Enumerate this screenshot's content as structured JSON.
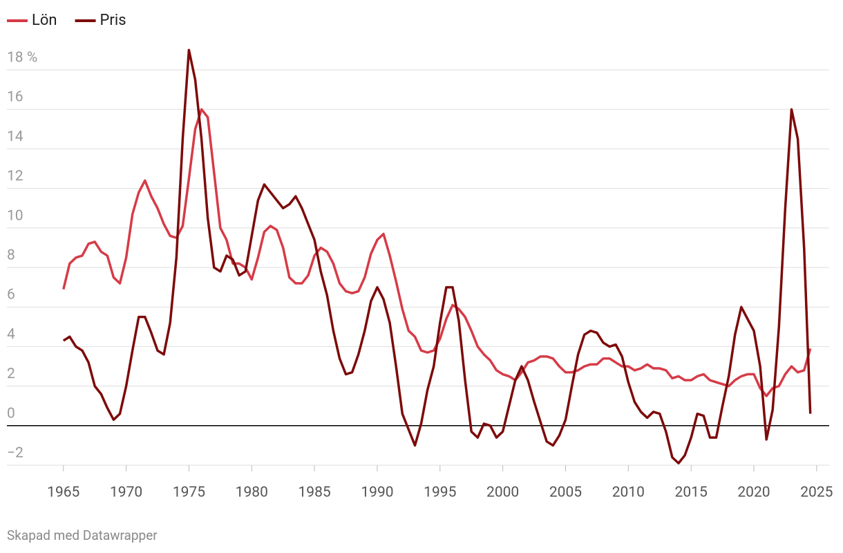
{
  "chart_data": {
    "type": "line",
    "footer": "Skapad med Datawrapper",
    "x": [
      1965,
      1965.5,
      1966,
      1966.5,
      1967,
      1967.5,
      1968,
      1968.5,
      1969,
      1969.5,
      1970,
      1970.5,
      1971,
      1971.5,
      1972,
      1972.5,
      1973,
      1973.5,
      1974,
      1974.5,
      1975,
      1975.5,
      1976,
      1976.5,
      1977,
      1977.5,
      1978,
      1978.5,
      1979,
      1979.5,
      1980,
      1980.5,
      1981,
      1981.5,
      1982,
      1982.5,
      1983,
      1983.5,
      1984,
      1984.5,
      1985,
      1985.5,
      1986,
      1986.5,
      1987,
      1987.5,
      1988,
      1988.5,
      1989,
      1989.5,
      1990,
      1990.5,
      1991,
      1991.5,
      1992,
      1992.5,
      1993,
      1993.5,
      1994,
      1994.5,
      1995,
      1995.5,
      1996,
      1996.5,
      1997,
      1997.5,
      1998,
      1998.5,
      1999,
      1999.5,
      2000,
      2000.5,
      2001,
      2001.5,
      2002,
      2002.5,
      2003,
      2003.5,
      2004,
      2004.5,
      2005,
      2005.5,
      2006,
      2006.5,
      2007,
      2007.5,
      2008,
      2008.5,
      2009,
      2009.5,
      2010,
      2010.5,
      2011,
      2011.5,
      2012,
      2012.5,
      2013,
      2013.5,
      2014,
      2014.5,
      2015,
      2015.5,
      2016,
      2016.5,
      2017,
      2017.5,
      2018,
      2018.5,
      2019,
      2019.5,
      2020,
      2020.5,
      2021,
      2021.5,
      2022,
      2022.5,
      2023,
      2023.5,
      2024,
      2024.5
    ],
    "series": [
      {
        "name": "Lön",
        "color": "#d63b47",
        "values": [
          6.9,
          8.2,
          8.5,
          8.6,
          9.2,
          9.3,
          8.8,
          8.6,
          7.5,
          7.2,
          8.5,
          10.7,
          11.8,
          12.4,
          11.6,
          11.0,
          10.2,
          9.6,
          9.5,
          10.1,
          12.5,
          15.0,
          16.0,
          15.6,
          12.8,
          10.0,
          9.4,
          8.2,
          8.2,
          8.0,
          7.4,
          8.5,
          9.8,
          10.1,
          9.9,
          9.0,
          7.5,
          7.2,
          7.2,
          7.6,
          8.6,
          9.0,
          8.8,
          8.2,
          7.2,
          6.8,
          6.7,
          6.8,
          7.5,
          8.7,
          9.4,
          9.7,
          8.6,
          7.3,
          5.9,
          4.8,
          4.5,
          3.8,
          3.7,
          3.8,
          4.4,
          5.4,
          6.1,
          5.9,
          5.5,
          4.8,
          4.0,
          3.6,
          3.3,
          2.8,
          2.6,
          2.5,
          2.3,
          2.7,
          3.2,
          3.3,
          3.5,
          3.5,
          3.4,
          3.0,
          2.7,
          2.7,
          2.8,
          3.0,
          3.1,
          3.1,
          3.4,
          3.4,
          3.2,
          3.0,
          3.0,
          2.8,
          2.9,
          3.1,
          2.9,
          2.9,
          2.8,
          2.4,
          2.5,
          2.3,
          2.3,
          2.5,
          2.6,
          2.3,
          2.2,
          2.1,
          2.0,
          2.3,
          2.5,
          2.6,
          2.6,
          1.9,
          1.5,
          1.9,
          2.0,
          2.6,
          3.0,
          2.7,
          2.8,
          3.9
        ]
      },
      {
        "name": "Pris",
        "color": "#7d0a0a",
        "values": [
          4.3,
          4.5,
          4.0,
          3.8,
          3.2,
          2.0,
          1.6,
          0.9,
          0.3,
          0.6,
          2.0,
          3.8,
          5.5,
          5.5,
          4.7,
          3.8,
          3.6,
          5.2,
          8.5,
          14.5,
          19.0,
          17.5,
          14.5,
          10.5,
          8.0,
          7.8,
          8.6,
          8.4,
          7.6,
          7.8,
          9.6,
          11.4,
          12.2,
          11.8,
          11.4,
          11.0,
          11.2,
          11.6,
          11.0,
          10.2,
          9.4,
          7.8,
          6.6,
          4.8,
          3.4,
          2.6,
          2.7,
          3.6,
          4.8,
          6.3,
          7.0,
          6.4,
          5.2,
          3.0,
          0.6,
          -0.2,
          -1.0,
          0.1,
          1.8,
          3.0,
          5.2,
          7.0,
          7.0,
          5.3,
          2.3,
          -0.3,
          -0.6,
          0.1,
          0.0,
          -0.6,
          -0.3,
          1.0,
          2.3,
          3.0,
          2.3,
          1.2,
          0.2,
          -0.8,
          -1.0,
          -0.5,
          0.3,
          2.0,
          3.6,
          4.6,
          4.8,
          4.7,
          4.2,
          4.0,
          4.1,
          3.5,
          2.2,
          1.2,
          0.7,
          0.4,
          0.7,
          0.6,
          -0.3,
          -1.6,
          -1.9,
          -1.5,
          -0.6,
          0.6,
          0.5,
          -0.6,
          -0.6,
          1.0,
          2.5,
          4.6,
          6.0,
          5.4,
          4.8,
          3.0,
          -0.7,
          0.8,
          5.0,
          11.0,
          16.0,
          14.5,
          9.0,
          0.6
        ]
      }
    ],
    "xlim": [
      1960.5,
      2026
    ],
    "xticks": [
      1965,
      1970,
      1975,
      1980,
      1985,
      1990,
      1995,
      2000,
      2005,
      2010,
      2015,
      2020,
      2025
    ],
    "ylim": [
      -2,
      18
    ],
    "yticks": [
      {
        "value": -2,
        "label": "−2"
      },
      0,
      2,
      4,
      6,
      8,
      10,
      12,
      14,
      16,
      {
        "value": 18,
        "label": "18 %"
      }
    ],
    "grid": true,
    "legend": "top-left"
  }
}
